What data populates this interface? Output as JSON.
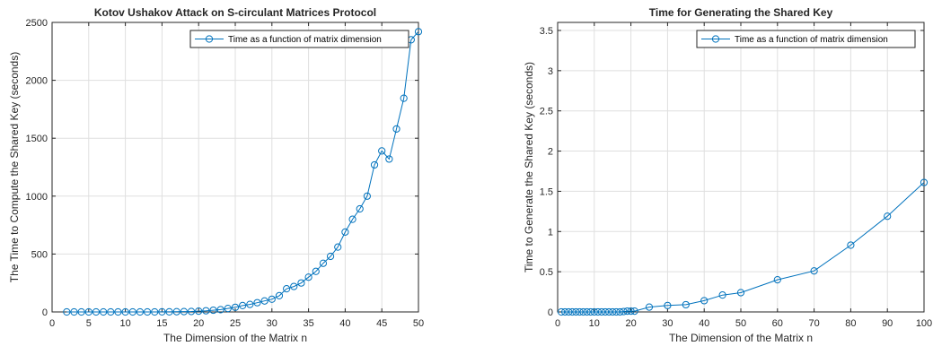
{
  "chart_data": [
    {
      "type": "line",
      "title": "Kotov Ushakov Attack on S-circulant Matrices Protocol",
      "xlabel": "The Dimension of the Matrix n",
      "ylabel": "The Time to Compute the Shared Key (seconds)",
      "xlim": [
        0,
        50
      ],
      "ylim": [
        0,
        2500
      ],
      "xticks": [
        0,
        5,
        10,
        15,
        20,
        25,
        30,
        35,
        40,
        45,
        50
      ],
      "yticks": [
        0,
        500,
        1000,
        1500,
        2000,
        2500
      ],
      "grid": true,
      "legend_position": "top-right",
      "series": [
        {
          "name": "Time as a function of matrix dimension",
          "color": "#0072BD",
          "marker": "circle",
          "x": [
            2,
            3,
            4,
            5,
            6,
            7,
            8,
            9,
            10,
            11,
            12,
            13,
            14,
            15,
            16,
            17,
            18,
            19,
            20,
            21,
            22,
            23,
            24,
            25,
            26,
            27,
            28,
            29,
            30,
            31,
            32,
            33,
            34,
            35,
            36,
            37,
            38,
            39,
            40,
            41,
            42,
            43,
            44,
            45,
            46,
            47,
            48,
            49,
            50
          ],
          "y": [
            0,
            0,
            0,
            0,
            0,
            0,
            0,
            0,
            0,
            0,
            0,
            0,
            0,
            1,
            1,
            2,
            3,
            4,
            7,
            10,
            15,
            20,
            30,
            40,
            55,
            65,
            80,
            95,
            110,
            140,
            200,
            220,
            250,
            300,
            350,
            420,
            480,
            560,
            690,
            800,
            890,
            1000,
            1270,
            1390,
            1320,
            1580,
            1845,
            2350,
            2420
          ]
        }
      ]
    },
    {
      "type": "line",
      "title": "Time for Generating the Shared Key",
      "xlabel": "The Dimension of the Matrix n",
      "ylabel": "Time to Generate the Shared Key (seconds)",
      "xlim": [
        0,
        100
      ],
      "ylim": [
        0,
        3.6
      ],
      "xticks": [
        0,
        10,
        20,
        30,
        40,
        50,
        60,
        70,
        80,
        90,
        100
      ],
      "yticks": [
        0,
        0.5,
        1,
        1.5,
        2,
        2.5,
        3,
        3.5
      ],
      "grid": true,
      "legend_position": "top-right",
      "series": [
        {
          "name": "Time as a function of matrix dimension",
          "color": "#0072BD",
          "marker": "circle",
          "x": [
            1,
            2,
            3,
            4,
            5,
            6,
            7,
            8,
            9,
            10,
            11,
            12,
            13,
            14,
            15,
            16,
            17,
            18,
            19,
            20,
            21,
            25,
            30,
            35,
            40,
            45,
            50,
            60,
            70,
            80,
            90,
            100
          ],
          "y": [
            0,
            0,
            0,
            0,
            0,
            0,
            0,
            0,
            0,
            0,
            0,
            0,
            0,
            0,
            0,
            0,
            0,
            0.005,
            0.01,
            0.01,
            0.01,
            0.06,
            0.08,
            0.09,
            0.14,
            0.21,
            0.24,
            0.4,
            0.51,
            0.83,
            1.19,
            1.61
          ]
        }
      ]
    }
  ]
}
